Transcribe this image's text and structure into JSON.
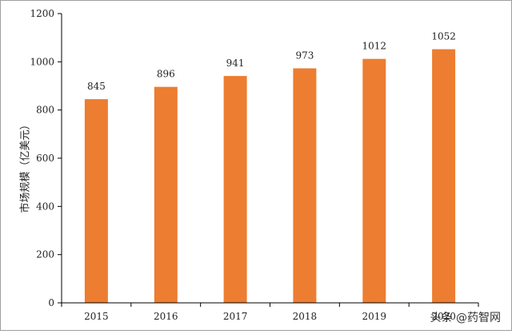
{
  "chart_data": {
    "type": "bar",
    "categories": [
      "2015",
      "2016",
      "2017",
      "2018",
      "2019",
      "2020"
    ],
    "values": [
      845,
      896,
      941,
      973,
      1012,
      1052
    ],
    "data_labels": [
      "845",
      "896",
      "941",
      "973",
      "1012",
      "1052"
    ],
    "title": "",
    "xlabel": "",
    "ylabel": "市场规模（亿美元）",
    "ylim": [
      0,
      1200
    ],
    "yticks": [
      0,
      200,
      400,
      600,
      800,
      1000,
      1200
    ],
    "grid": false,
    "legend": "none",
    "colors": {
      "bar": "#ED7D31",
      "axis": "#000000",
      "frame": "#9E9E9E"
    }
  },
  "watermark": {
    "text": "头条 @药智网"
  }
}
